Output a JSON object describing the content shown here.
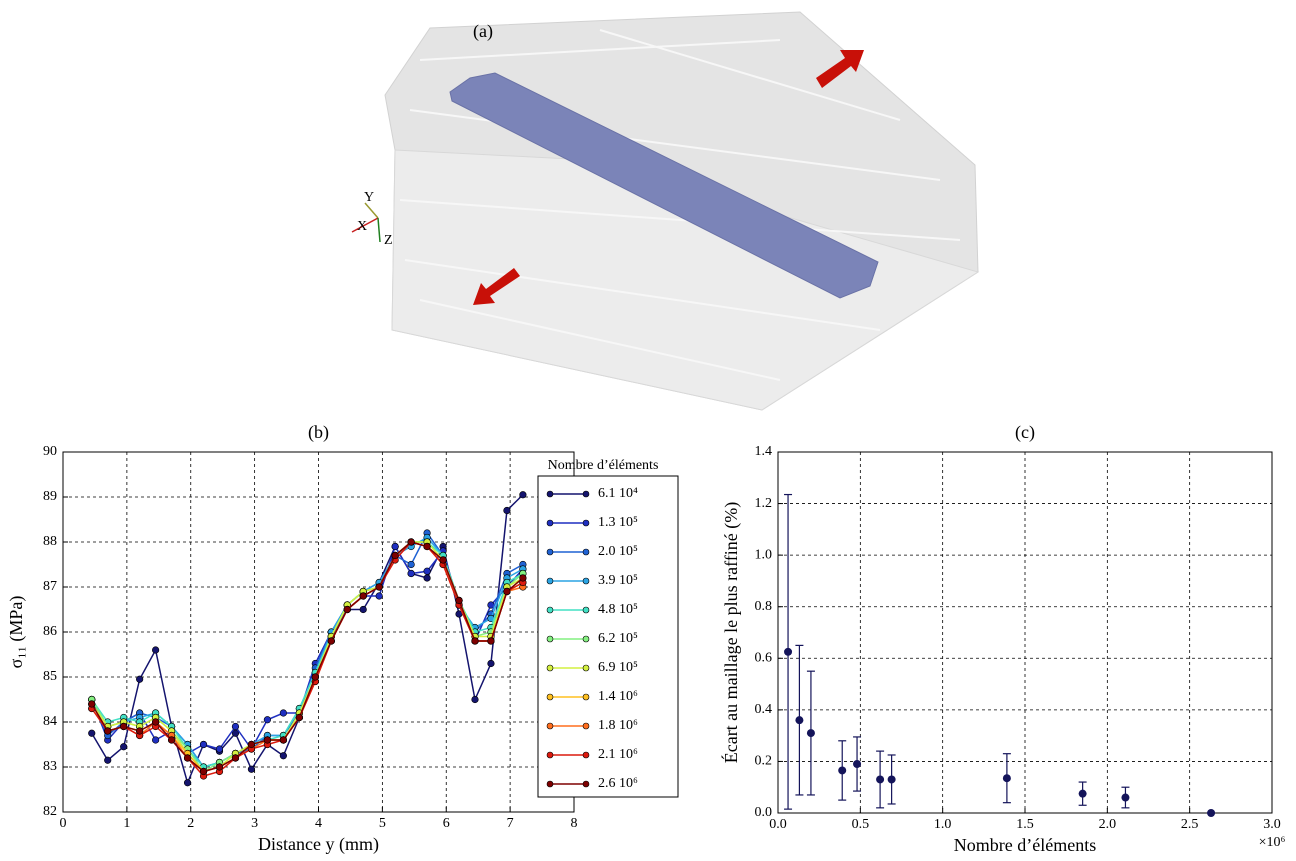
{
  "image_panel": {
    "label": "(a)",
    "axis_labels": [
      "Y",
      "X",
      "Z"
    ]
  },
  "chart_data": [
    {
      "type": "line",
      "title": "(b)",
      "xlabel": "Distance y (mm)",
      "ylabel": "σ₁₁ (MPa)",
      "xlim": [
        0,
        8
      ],
      "xticks": [
        0,
        1,
        2,
        3,
        4,
        5,
        6,
        7,
        8
      ],
      "ylim": [
        82,
        90
      ],
      "yticks": [
        82,
        83,
        84,
        85,
        86,
        87,
        88,
        89,
        90
      ],
      "grid": true,
      "legend": "right",
      "legend_title": "Nombre d’éléments",
      "x": [
        0.45,
        0.7,
        0.95,
        1.2,
        1.45,
        1.7,
        1.95,
        2.2,
        2.45,
        2.7,
        2.95,
        3.2,
        3.45,
        3.7,
        3.95,
        4.2,
        4.45,
        4.7,
        4.95,
        5.2,
        5.45,
        5.7,
        5.95,
        6.2,
        6.45,
        6.7,
        6.95,
        7.2
      ],
      "series": [
        {
          "name": "6.1 10⁴",
          "color": "#14146e",
          "values": [
            83.75,
            83.15,
            83.45,
            84.95,
            85.6,
            83.9,
            82.65,
            83.5,
            83.35,
            83.75,
            82.95,
            83.5,
            83.25,
            84.1,
            85.0,
            85.9,
            86.5,
            86.5,
            87.1,
            87.9,
            87.3,
            87.2,
            87.9,
            86.4,
            84.5,
            85.3,
            88.7,
            89.05
          ]
        },
        {
          "name": "1.3 10⁵",
          "color": "#1f2fc0",
          "values": [
            84.5,
            83.6,
            84.0,
            84.2,
            83.6,
            83.8,
            83.3,
            83.5,
            83.4,
            83.9,
            83.4,
            84.05,
            84.2,
            84.2,
            85.3,
            86.0,
            86.5,
            86.8,
            86.8,
            87.9,
            87.3,
            87.35,
            87.8,
            86.6,
            85.8,
            86.6,
            87.0,
            87.4
          ]
        },
        {
          "name": "2.0 10⁵",
          "color": "#1f62d4",
          "values": [
            84.5,
            83.7,
            84.0,
            84.2,
            84.1,
            83.9,
            83.5,
            83.0,
            83.1,
            83.3,
            83.4,
            83.7,
            83.7,
            84.2,
            85.2,
            86.0,
            86.6,
            86.9,
            87.1,
            87.7,
            87.5,
            88.2,
            87.7,
            86.6,
            86.0,
            86.4,
            87.3,
            87.5
          ]
        },
        {
          "name": "3.9 10⁵",
          "color": "#2aa4e4",
          "values": [
            84.5,
            83.9,
            84.0,
            84.1,
            84.2,
            83.9,
            83.5,
            83.0,
            83.1,
            83.3,
            83.5,
            83.7,
            83.7,
            84.3,
            85.1,
            86.0,
            86.6,
            86.9,
            87.1,
            87.7,
            87.9,
            88.1,
            87.7,
            86.6,
            86.1,
            86.3,
            87.2,
            87.4
          ]
        },
        {
          "name": "4.8 10⁵",
          "color": "#42e0c4",
          "values": [
            84.5,
            84.0,
            84.1,
            84.0,
            84.2,
            83.9,
            83.4,
            83.0,
            83.1,
            83.3,
            83.5,
            83.6,
            83.7,
            84.3,
            85.1,
            85.9,
            86.6,
            86.9,
            87.0,
            87.7,
            88.0,
            88.0,
            87.7,
            86.7,
            86.0,
            86.1,
            87.1,
            87.3
          ]
        },
        {
          "name": "6.2 10⁵",
          "color": "#84f080",
          "values": [
            84.5,
            83.9,
            84.0,
            83.9,
            84.1,
            83.8,
            83.4,
            82.9,
            83.1,
            83.3,
            83.5,
            83.6,
            83.6,
            84.2,
            85.0,
            85.9,
            86.6,
            86.9,
            87.0,
            87.7,
            88.0,
            88.0,
            87.6,
            86.7,
            85.9,
            86.0,
            87.0,
            87.3
          ]
        },
        {
          "name": "6.9 10⁵",
          "color": "#d4f040",
          "values": [
            84.4,
            83.9,
            84.0,
            83.9,
            84.1,
            83.8,
            83.3,
            82.9,
            83.0,
            83.3,
            83.5,
            83.6,
            83.6,
            84.2,
            85.0,
            85.9,
            86.6,
            86.9,
            87.0,
            87.7,
            88.0,
            88.0,
            87.6,
            86.7,
            85.9,
            85.9,
            87.0,
            87.2
          ]
        },
        {
          "name": "1.4 10⁶",
          "color": "#ffc020",
          "values": [
            84.4,
            83.8,
            83.9,
            83.8,
            84.0,
            83.7,
            83.3,
            82.9,
            83.0,
            83.2,
            83.5,
            83.6,
            83.6,
            84.1,
            85.0,
            85.8,
            86.5,
            86.8,
            87.0,
            87.7,
            88.0,
            87.9,
            87.6,
            86.7,
            85.8,
            85.8,
            86.9,
            87.1
          ]
        },
        {
          "name": "1.8 10⁶",
          "color": "#ff6e1e",
          "values": [
            84.3,
            83.8,
            83.9,
            83.7,
            84.0,
            83.7,
            83.2,
            82.9,
            83.0,
            83.2,
            83.4,
            83.6,
            83.6,
            84.1,
            84.9,
            85.8,
            86.5,
            86.8,
            87.0,
            87.7,
            88.0,
            87.9,
            87.5,
            86.6,
            85.8,
            85.8,
            86.9,
            87.0
          ]
        },
        {
          "name": "2.1 10⁶",
          "color": "#dc1a0e",
          "values": [
            84.3,
            83.8,
            83.9,
            83.7,
            83.9,
            83.6,
            83.2,
            82.8,
            82.9,
            83.2,
            83.4,
            83.5,
            83.6,
            84.1,
            84.9,
            85.8,
            86.5,
            86.8,
            87.0,
            87.6,
            88.0,
            87.9,
            87.5,
            86.6,
            85.8,
            85.8,
            86.9,
            87.1
          ]
        },
        {
          "name": "2.6 10⁶",
          "color": "#7e0000",
          "values": [
            84.4,
            83.8,
            83.9,
            83.8,
            84.0,
            83.6,
            83.2,
            82.9,
            83.0,
            83.2,
            83.5,
            83.6,
            83.6,
            84.1,
            85.0,
            85.8,
            86.5,
            86.8,
            87.0,
            87.7,
            88.0,
            87.9,
            87.6,
            86.7,
            85.8,
            85.8,
            86.9,
            87.2
          ]
        }
      ]
    },
    {
      "type": "scatter",
      "title": "(c)",
      "xlabel": "Nombre d’éléments",
      "ylabel": "Écart au maillage le plus raffiné (%)",
      "x_offset_label": "×10⁶",
      "xlim": [
        0,
        3
      ],
      "xticks": [
        {
          "value": 0,
          "label": "0.0"
        },
        0.5,
        {
          "value": 1,
          "label": "1.0"
        },
        1.5,
        {
          "value": 2,
          "label": "2.0"
        },
        2.5,
        {
          "value": 3,
          "label": "3.0"
        }
      ],
      "ylim": [
        0,
        1.4
      ],
      "yticks": [
        {
          "value": 0,
          "label": "0.0"
        },
        0.2,
        0.4,
        0.6,
        0.8,
        {
          "value": 1,
          "label": "1.0"
        },
        1.2,
        1.4
      ],
      "grid": true,
      "color": "#14145a",
      "x": [
        0.061,
        0.13,
        0.2,
        0.39,
        0.48,
        0.62,
        0.69,
        1.39,
        1.85,
        2.11,
        2.63
      ],
      "values": [
        0.625,
        0.36,
        0.31,
        0.165,
        0.19,
        0.13,
        0.13,
        0.135,
        0.075,
        0.06,
        0
      ],
      "errors": [
        0.61,
        0.29,
        0.24,
        0.115,
        0.105,
        0.11,
        0.095,
        0.095,
        0.045,
        0.04,
        0
      ]
    }
  ]
}
